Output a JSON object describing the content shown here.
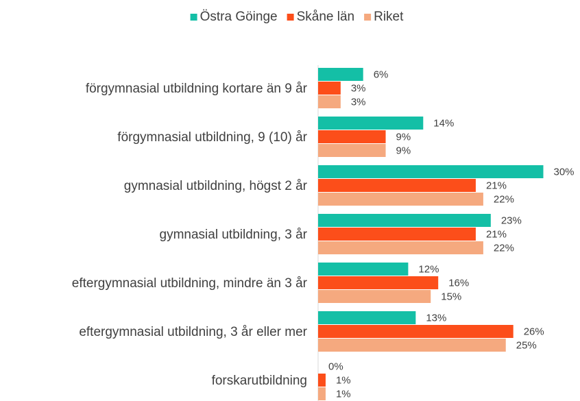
{
  "chart_data": {
    "type": "bar",
    "orientation": "horizontal",
    "categories": [
      "förgymnasial utbildning kortare än 9 år",
      "förgymnasial utbildning, 9 (10) år",
      "gymnasial utbildning, högst 2 år",
      "gymnasial utbildning, 3 år",
      "eftergymnasial utbildning, mindre än 3 år",
      "eftergymnasial utbildning, 3 år eller mer",
      "forskarutbildning"
    ],
    "series": [
      {
        "name": "Östra Göinge",
        "color": "#14bfa6",
        "values": [
          6,
          14,
          30,
          23,
          12,
          13,
          0
        ],
        "value_labels": [
          "6%",
          "14%",
          "30%",
          "23%",
          "12%",
          "13%",
          "0%"
        ]
      },
      {
        "name": "Skåne län",
        "color": "#fc4e1a",
        "values": [
          3,
          9,
          21,
          21,
          16,
          26,
          1
        ],
        "value_labels": [
          "3%",
          "9%",
          "21%",
          "21%",
          "16%",
          "26%",
          "1%"
        ]
      },
      {
        "name": "Riket",
        "color": "#f5a97f",
        "values": [
          3,
          9,
          22,
          22,
          15,
          25,
          1
        ],
        "value_labels": [
          "3%",
          "9%",
          "22%",
          "22%",
          "15%",
          "25%",
          "1%"
        ]
      }
    ],
    "legend": "top"
  }
}
